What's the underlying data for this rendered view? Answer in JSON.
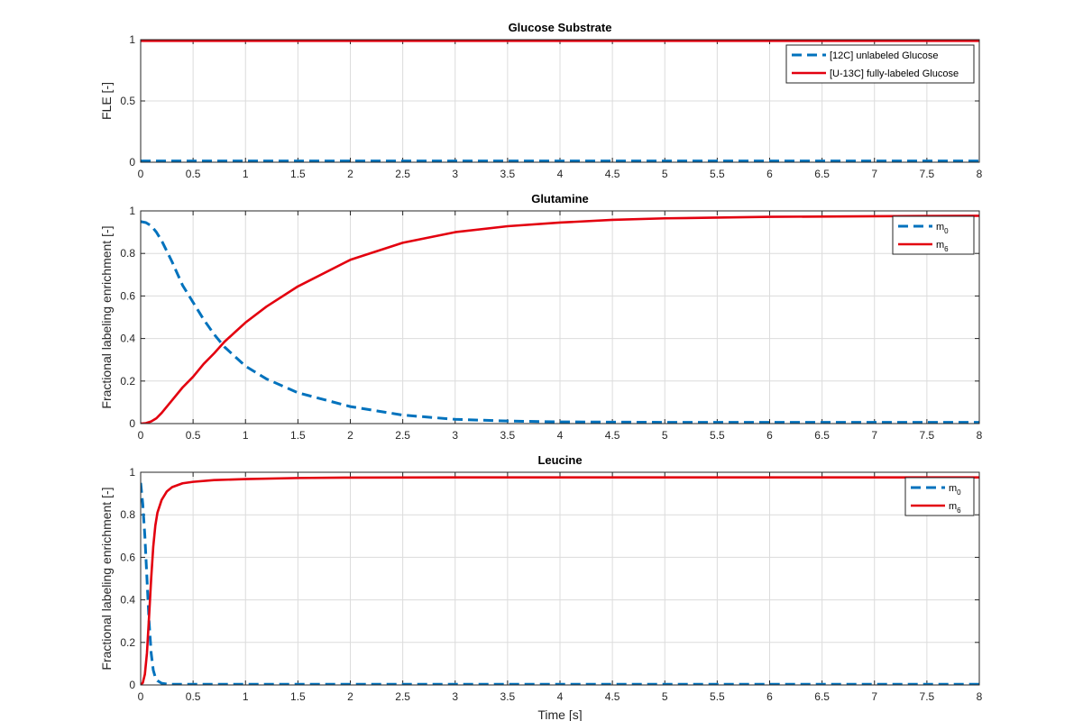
{
  "colors": {
    "series_dashed": "#0072BD",
    "series_solid": "#E3000F",
    "grid": "#DCDCDC",
    "axis": "#262626"
  },
  "chart_data": [
    {
      "type": "line",
      "title": "Glucose Substrate",
      "xlabel": "",
      "ylabel": "FLE [-]",
      "xlim": [
        0,
        8
      ],
      "ylim": [
        0,
        1
      ],
      "xticks": [
        "0",
        "0.5",
        "1",
        "1.5",
        "2",
        "2.5",
        "3",
        "3.5",
        "4",
        "4.5",
        "5",
        "5.5",
        "6",
        "6.5",
        "7",
        "7.5",
        "8"
      ],
      "yticks": [
        "0",
        "0.5",
        "1"
      ],
      "grid": true,
      "legend": "top-right",
      "series": [
        {
          "name": "[12C] unlabeled Glucose",
          "style": "dashed",
          "color": "#0072BD",
          "x": [
            0,
            8
          ],
          "y": [
            0.01,
            0.01
          ]
        },
        {
          "name": "[U-13C] fully-labeled Glucose",
          "style": "solid",
          "color": "#E3000F",
          "x": [
            0,
            8
          ],
          "y": [
            0.99,
            0.99
          ]
        }
      ]
    },
    {
      "type": "line",
      "title": "Glutamine",
      "xlabel": "",
      "ylabel": "Fractional labeling enrichment [-]",
      "xlim": [
        0,
        8
      ],
      "ylim": [
        0,
        1
      ],
      "xticks": [
        "0",
        "0.5",
        "1",
        "1.5",
        "2",
        "2.5",
        "3",
        "3.5",
        "4",
        "4.5",
        "5",
        "5.5",
        "6",
        "6.5",
        "7",
        "7.5",
        "8"
      ],
      "yticks": [
        "0",
        "0.2",
        "0.4",
        "0.6",
        "0.8",
        "1"
      ],
      "grid": true,
      "legend": "top-right",
      "series": [
        {
          "name": "m",
          "sub": "0",
          "style": "dashed",
          "color": "#0072BD",
          "x": [
            0,
            0.05,
            0.1,
            0.15,
            0.2,
            0.3,
            0.4,
            0.5,
            0.6,
            0.7,
            0.8,
            0.9,
            1.0,
            1.2,
            1.5,
            2.0,
            2.5,
            3.0,
            3.5,
            4.0,
            5.0,
            6.0,
            7.0,
            8.0
          ],
          "y": [
            0.95,
            0.945,
            0.93,
            0.9,
            0.86,
            0.76,
            0.65,
            0.57,
            0.49,
            0.42,
            0.36,
            0.315,
            0.27,
            0.21,
            0.145,
            0.08,
            0.04,
            0.02,
            0.012,
            0.008,
            0.006,
            0.006,
            0.006,
            0.006
          ]
        },
        {
          "name": "m",
          "sub": "6",
          "style": "solid",
          "color": "#E3000F",
          "x": [
            0,
            0.05,
            0.1,
            0.15,
            0.2,
            0.3,
            0.4,
            0.5,
            0.6,
            0.7,
            0.8,
            0.9,
            1.0,
            1.2,
            1.5,
            2.0,
            2.5,
            3.0,
            3.5,
            4.0,
            4.5,
            5.0,
            6.0,
            7.0,
            8.0
          ],
          "y": [
            0.0,
            0.002,
            0.01,
            0.025,
            0.05,
            0.11,
            0.17,
            0.22,
            0.28,
            0.33,
            0.385,
            0.43,
            0.475,
            0.55,
            0.645,
            0.77,
            0.85,
            0.9,
            0.928,
            0.945,
            0.958,
            0.965,
            0.972,
            0.975,
            0.977
          ]
        }
      ]
    },
    {
      "type": "line",
      "title": "Leucine",
      "xlabel": "Time [s]",
      "ylabel": "Fractional labeling enrichment [-]",
      "xlim": [
        0,
        8
      ],
      "ylim": [
        0,
        1
      ],
      "xticks": [
        "0",
        "0.5",
        "1",
        "1.5",
        "2",
        "2.5",
        "3",
        "3.5",
        "4",
        "4.5",
        "5",
        "5.5",
        "6",
        "6.5",
        "7",
        "7.5",
        "8"
      ],
      "yticks": [
        "0",
        "0.2",
        "0.4",
        "0.6",
        "0.8",
        "1"
      ],
      "grid": true,
      "legend": "top-right",
      "series": [
        {
          "name": "m",
          "sub": "0",
          "style": "dashed",
          "color": "#0072BD",
          "x": [
            0,
            0.02,
            0.04,
            0.06,
            0.08,
            0.1,
            0.12,
            0.14,
            0.16,
            0.2,
            0.25,
            0.3,
            0.4,
            8.0
          ],
          "y": [
            0.95,
            0.85,
            0.7,
            0.5,
            0.3,
            0.15,
            0.07,
            0.035,
            0.02,
            0.008,
            0.004,
            0.003,
            0.003,
            0.003
          ]
        },
        {
          "name": "m",
          "sub": "6",
          "style": "solid",
          "color": "#E3000F",
          "x": [
            0,
            0.02,
            0.04,
            0.06,
            0.08,
            0.1,
            0.12,
            0.14,
            0.16,
            0.2,
            0.25,
            0.3,
            0.4,
            0.5,
            0.7,
            1.0,
            1.5,
            2.0,
            3.0,
            4.0,
            5.0,
            6.0,
            7.0,
            8.0
          ],
          "y": [
            0.0,
            0.01,
            0.05,
            0.15,
            0.32,
            0.5,
            0.65,
            0.75,
            0.81,
            0.87,
            0.91,
            0.93,
            0.948,
            0.955,
            0.963,
            0.968,
            0.973,
            0.975,
            0.976,
            0.976,
            0.976,
            0.976,
            0.976,
            0.976
          ]
        }
      ]
    }
  ]
}
